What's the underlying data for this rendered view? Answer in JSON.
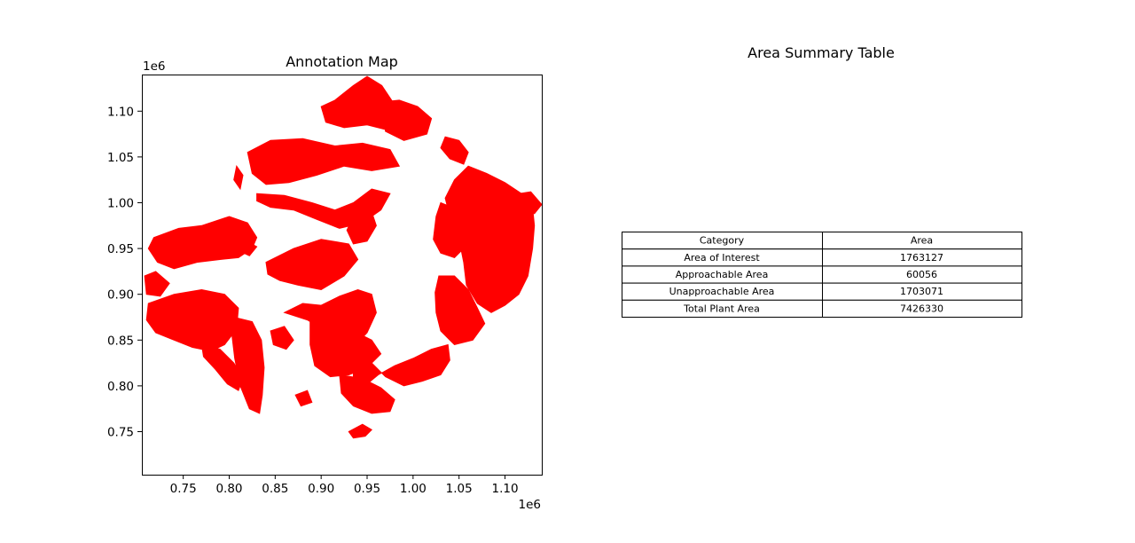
{
  "chart_data": [
    {
      "type": "map",
      "title": "Annotation Map",
      "xlabel": "",
      "ylabel": "",
      "x_offset_label": "1e6",
      "y_offset_label": "1e6",
      "xlim": [
        0.705,
        1.14
      ],
      "ylim": [
        0.703,
        1.14
      ],
      "x_ticks": [
        0.75,
        0.8,
        0.85,
        0.9,
        0.95,
        1.0,
        1.05,
        1.1
      ],
      "x_tick_labels": [
        "0.75",
        "0.80",
        "0.85",
        "0.90",
        "0.95",
        "1.00",
        "1.05",
        "1.10"
      ],
      "y_ticks": [
        0.75,
        0.8,
        0.85,
        0.9,
        0.95,
        1.0,
        1.05,
        1.1
      ],
      "y_tick_labels": [
        "0.75",
        "0.80",
        "0.85",
        "0.90",
        "0.95",
        "1.00",
        "1.05",
        "1.10"
      ],
      "fill_color": "#ff0000",
      "regions": [
        {
          "points": [
            [
              0.935,
              1.128
            ],
            [
              0.95,
              1.138
            ],
            [
              0.966,
              1.128
            ],
            [
              0.978,
              1.11
            ],
            [
              0.985,
              1.09
            ],
            [
              0.97,
              1.08
            ],
            [
              0.95,
              1.085
            ],
            [
              0.925,
              1.082
            ],
            [
              0.905,
              1.088
            ],
            [
              0.9,
              1.105
            ],
            [
              0.915,
              1.112
            ]
          ]
        },
        {
          "points": [
            [
              0.965,
              1.11
            ],
            [
              0.985,
              1.112
            ],
            [
              1.005,
              1.105
            ],
            [
              1.02,
              1.092
            ],
            [
              1.015,
              1.075
            ],
            [
              0.99,
              1.068
            ],
            [
              0.97,
              1.078
            ]
          ]
        },
        {
          "points": [
            [
              0.82,
              1.055
            ],
            [
              0.845,
              1.068
            ],
            [
              0.88,
              1.07
            ],
            [
              0.915,
              1.062
            ],
            [
              0.945,
              1.065
            ],
            [
              0.975,
              1.058
            ],
            [
              0.985,
              1.04
            ],
            [
              0.955,
              1.035
            ],
            [
              0.925,
              1.04
            ],
            [
              0.895,
              1.03
            ],
            [
              0.865,
              1.022
            ],
            [
              0.84,
              1.02
            ],
            [
              0.825,
              1.032
            ]
          ]
        },
        {
          "points": [
            [
              0.808,
              1.04
            ],
            [
              0.815,
              1.03
            ],
            [
              0.812,
              1.015
            ],
            [
              0.805,
              1.025
            ]
          ]
        },
        {
          "points": [
            [
              0.83,
              1.01
            ],
            [
              0.86,
              1.008
            ],
            [
              0.89,
              1.0
            ],
            [
              0.915,
              0.992
            ],
            [
              0.935,
              1.0
            ],
            [
              0.955,
              1.015
            ],
            [
              0.975,
              1.01
            ],
            [
              0.965,
              0.992
            ],
            [
              0.945,
              0.978
            ],
            [
              0.92,
              0.972
            ],
            [
              0.895,
              0.982
            ],
            [
              0.87,
              0.992
            ],
            [
              0.845,
              0.995
            ],
            [
              0.83,
              1.002
            ]
          ]
        },
        {
          "points": [
            [
              1.06,
              1.04
            ],
            [
              1.08,
              1.032
            ],
            [
              1.1,
              1.022
            ],
            [
              1.118,
              1.01
            ],
            [
              1.13,
              0.995
            ],
            [
              1.132,
              0.975
            ],
            [
              1.13,
              0.95
            ],
            [
              1.125,
              0.92
            ],
            [
              1.115,
              0.9
            ],
            [
              1.1,
              0.888
            ],
            [
              1.085,
              0.88
            ],
            [
              1.07,
              0.89
            ],
            [
              1.058,
              0.91
            ],
            [
              1.055,
              0.935
            ],
            [
              1.05,
              0.96
            ],
            [
              1.04,
              0.985
            ],
            [
              1.035,
              1.005
            ],
            [
              1.045,
              1.025
            ]
          ]
        },
        {
          "points": [
            [
              1.035,
              1.072
            ],
            [
              1.05,
              1.068
            ],
            [
              1.06,
              1.055
            ],
            [
              1.055,
              1.042
            ],
            [
              1.04,
              1.048
            ],
            [
              1.03,
              1.06
            ]
          ]
        },
        {
          "points": [
            [
              1.03,
              1.0
            ],
            [
              1.05,
              0.992
            ],
            [
              1.062,
              0.975
            ],
            [
              1.06,
              0.955
            ],
            [
              1.045,
              0.94
            ],
            [
              1.03,
              0.945
            ],
            [
              1.022,
              0.96
            ],
            [
              1.025,
              0.985
            ]
          ]
        },
        {
          "points": [
            [
              1.028,
              0.92
            ],
            [
              1.045,
              0.92
            ],
            [
              1.06,
              0.905
            ],
            [
              1.07,
              0.885
            ],
            [
              1.078,
              0.868
            ],
            [
              1.065,
              0.85
            ],
            [
              1.045,
              0.845
            ],
            [
              1.03,
              0.86
            ],
            [
              1.025,
              0.88
            ],
            [
              1.024,
              0.902
            ]
          ]
        },
        {
          "points": [
            [
              0.718,
              0.962
            ],
            [
              0.745,
              0.972
            ],
            [
              0.77,
              0.975
            ],
            [
              0.8,
              0.985
            ],
            [
              0.82,
              0.978
            ],
            [
              0.83,
              0.962
            ],
            [
              0.825,
              0.95
            ],
            [
              0.81,
              0.94
            ],
            [
              0.79,
              0.938
            ],
            [
              0.765,
              0.935
            ],
            [
              0.74,
              0.928
            ],
            [
              0.722,
              0.935
            ],
            [
              0.712,
              0.95
            ]
          ]
        },
        {
          "points": [
            [
              0.708,
              0.92
            ],
            [
              0.72,
              0.925
            ],
            [
              0.735,
              0.912
            ],
            [
              0.725,
              0.898
            ],
            [
              0.71,
              0.9
            ]
          ]
        },
        {
          "points": [
            [
              0.84,
              0.935
            ],
            [
              0.87,
              0.95
            ],
            [
              0.9,
              0.96
            ],
            [
              0.93,
              0.955
            ],
            [
              0.94,
              0.938
            ],
            [
              0.925,
              0.92
            ],
            [
              0.9,
              0.905
            ],
            [
              0.875,
              0.91
            ],
            [
              0.855,
              0.915
            ],
            [
              0.842,
              0.922
            ]
          ]
        },
        {
          "points": [
            [
              0.94,
              0.995
            ],
            [
              0.955,
              0.99
            ],
            [
              0.96,
              0.975
            ],
            [
              0.95,
              0.958
            ],
            [
              0.935,
              0.955
            ],
            [
              0.928,
              0.97
            ]
          ]
        },
        {
          "points": [
            [
              0.712,
              0.89
            ],
            [
              0.74,
              0.9
            ],
            [
              0.77,
              0.905
            ],
            [
              0.795,
              0.9
            ],
            [
              0.81,
              0.885
            ],
            [
              0.808,
              0.862
            ],
            [
              0.795,
              0.845
            ],
            [
              0.78,
              0.838
            ],
            [
              0.76,
              0.842
            ],
            [
              0.74,
              0.85
            ],
            [
              0.72,
              0.858
            ],
            [
              0.71,
              0.872
            ]
          ]
        },
        {
          "points": [
            [
              0.77,
              0.845
            ],
            [
              0.79,
              0.84
            ],
            [
              0.805,
              0.825
            ],
            [
              0.815,
              0.808
            ],
            [
              0.81,
              0.795
            ],
            [
              0.798,
              0.802
            ],
            [
              0.785,
              0.818
            ],
            [
              0.772,
              0.832
            ]
          ]
        },
        {
          "points": [
            [
              0.805,
              0.875
            ],
            [
              0.825,
              0.87
            ],
            [
              0.835,
              0.85
            ],
            [
              0.838,
              0.82
            ],
            [
              0.836,
              0.79
            ],
            [
              0.833,
              0.77
            ],
            [
              0.822,
              0.775
            ],
            [
              0.812,
              0.8
            ],
            [
              0.806,
              0.83
            ],
            [
              0.803,
              0.855
            ]
          ]
        },
        {
          "points": [
            [
              0.86,
              0.88
            ],
            [
              0.885,
              0.872
            ],
            [
              0.905,
              0.86
            ],
            [
              0.92,
              0.848
            ],
            [
              0.935,
              0.842
            ],
            [
              0.95,
              0.858
            ],
            [
              0.96,
              0.88
            ],
            [
              0.955,
              0.9
            ],
            [
              0.94,
              0.905
            ],
            [
              0.92,
              0.898
            ],
            [
              0.9,
              0.888
            ],
            [
              0.88,
              0.89
            ]
          ]
        },
        {
          "points": [
            [
              0.888,
              0.872
            ],
            [
              0.91,
              0.868
            ],
            [
              0.935,
              0.86
            ],
            [
              0.955,
              0.85
            ],
            [
              0.965,
              0.835
            ],
            [
              0.95,
              0.82
            ],
            [
              0.93,
              0.812
            ],
            [
              0.91,
              0.81
            ],
            [
              0.893,
              0.822
            ],
            [
              0.888,
              0.845
            ]
          ]
        },
        {
          "points": [
            [
              0.935,
              0.818
            ],
            [
              0.955,
              0.825
            ],
            [
              0.97,
              0.81
            ],
            [
              0.99,
              0.8
            ],
            [
              1.01,
              0.805
            ],
            [
              1.03,
              0.812
            ],
            [
              1.04,
              0.828
            ],
            [
              1.038,
              0.845
            ],
            [
              1.02,
              0.84
            ],
            [
              1.0,
              0.83
            ],
            [
              0.98,
              0.822
            ],
            [
              0.962,
              0.812
            ],
            [
              0.95,
              0.802
            ],
            [
              0.935,
              0.798
            ]
          ]
        },
        {
          "points": [
            [
              0.92,
              0.812
            ],
            [
              0.945,
              0.808
            ],
            [
              0.965,
              0.798
            ],
            [
              0.98,
              0.785
            ],
            [
              0.975,
              0.772
            ],
            [
              0.955,
              0.77
            ],
            [
              0.935,
              0.778
            ],
            [
              0.922,
              0.792
            ]
          ]
        },
        {
          "points": [
            [
              0.93,
              0.75
            ],
            [
              0.945,
              0.758
            ],
            [
              0.955,
              0.752
            ],
            [
              0.948,
              0.745
            ],
            [
              0.935,
              0.743
            ]
          ]
        },
        {
          "points": [
            [
              0.805,
              0.95
            ],
            [
              0.815,
              0.96
            ],
            [
              0.83,
              0.952
            ],
            [
              0.822,
              0.942
            ]
          ]
        },
        {
          "points": [
            [
              0.845,
              0.86
            ],
            [
              0.86,
              0.865
            ],
            [
              0.87,
              0.85
            ],
            [
              0.862,
              0.84
            ],
            [
              0.848,
              0.845
            ]
          ]
        },
        {
          "points": [
            [
              0.872,
              0.79
            ],
            [
              0.885,
              0.795
            ],
            [
              0.89,
              0.782
            ],
            [
              0.878,
              0.778
            ]
          ]
        },
        {
          "points": [
            [
              1.115,
              1.01
            ],
            [
              1.128,
              1.012
            ],
            [
              1.14,
              0.998
            ],
            [
              1.132,
              0.988
            ],
            [
              1.12,
              0.995
            ]
          ]
        }
      ]
    },
    {
      "type": "table",
      "title": "Area Summary Table",
      "columns": [
        "Category",
        "Area"
      ],
      "rows": [
        [
          "Area of Interest",
          "1763127"
        ],
        [
          "Approachable Area",
          "60056"
        ],
        [
          "Unapproachable Area",
          "1703071"
        ],
        [
          "Total Plant Area",
          "7426330"
        ]
      ]
    }
  ]
}
